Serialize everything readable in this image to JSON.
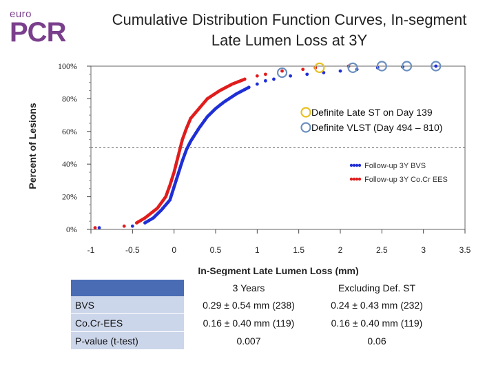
{
  "logo": {
    "small": "euro",
    "big": "PCR"
  },
  "title": "Cumulative Distribution Function Curves, In-segment Late Lumen Loss at 3Y",
  "chart_data": {
    "type": "scatter",
    "xlabel": "In-Segment Late Lumen Loss (mm)",
    "ylabel": "Percent of Lesions",
    "xlim": [
      -1,
      3.5
    ],
    "ylim": [
      0,
      100
    ],
    "x_ticks": [
      "-1",
      "-0.5",
      "0",
      "0.5",
      "1",
      "1.5",
      "2",
      "2.5",
      "3",
      "3.5"
    ],
    "y_ticks": [
      "0%",
      "20%",
      "40%",
      "60%",
      "80%",
      "100%"
    ],
    "reference_line_y": 50,
    "legend": {
      "placement": "right",
      "items": [
        {
          "label": "Follow-up 3Y BVS",
          "color": "#1f2fd6"
        },
        {
          "label": "Follow-up 3Y Co.Cr EES",
          "color": "#e01c1c"
        }
      ]
    },
    "series": [
      {
        "name": "Follow-up 3Y BVS",
        "color": "#1f2fd6",
        "points": [
          [
            -0.9,
            1
          ],
          [
            -0.5,
            2
          ],
          [
            -0.35,
            4
          ],
          [
            -0.25,
            7
          ],
          [
            -0.15,
            12
          ],
          [
            -0.05,
            18
          ],
          [
            0.0,
            26
          ],
          [
            0.05,
            34
          ],
          [
            0.1,
            42
          ],
          [
            0.15,
            49
          ],
          [
            0.2,
            54
          ],
          [
            0.3,
            62
          ],
          [
            0.4,
            69
          ],
          [
            0.5,
            74
          ],
          [
            0.6,
            78
          ],
          [
            0.75,
            83
          ],
          [
            0.9,
            87
          ],
          [
            1.0,
            89
          ],
          [
            1.1,
            91
          ],
          [
            1.2,
            92
          ],
          [
            1.4,
            94
          ],
          [
            1.6,
            95
          ],
          [
            1.8,
            96
          ],
          [
            2.0,
            97
          ],
          [
            2.2,
            98
          ],
          [
            2.45,
            99
          ],
          [
            2.75,
            99.5
          ],
          [
            3.15,
            100
          ]
        ]
      },
      {
        "name": "Follow-up 3Y Co.Cr EES",
        "color": "#e01c1c",
        "points": [
          [
            -0.95,
            1
          ],
          [
            -0.6,
            2
          ],
          [
            -0.45,
            4
          ],
          [
            -0.35,
            7
          ],
          [
            -0.2,
            13
          ],
          [
            -0.1,
            20
          ],
          [
            -0.05,
            27
          ],
          [
            0.0,
            35
          ],
          [
            0.05,
            45
          ],
          [
            0.1,
            55
          ],
          [
            0.15,
            62
          ],
          [
            0.2,
            68
          ],
          [
            0.3,
            74
          ],
          [
            0.4,
            80
          ],
          [
            0.55,
            85
          ],
          [
            0.7,
            89
          ],
          [
            0.85,
            92
          ],
          [
            1.0,
            94
          ],
          [
            1.1,
            95
          ],
          [
            1.3,
            97
          ],
          [
            1.55,
            98
          ],
          [
            1.7,
            99
          ],
          [
            2.1,
            100
          ]
        ]
      }
    ],
    "annotations": [
      {
        "label": "Definite Late ST on Day 139",
        "marker_color": "#e8c020",
        "points": [
          [
            1.75,
            99
          ]
        ]
      },
      {
        "label": "Definite VLST (Day 494 – 810)",
        "marker_color": "#6b8fbf",
        "points": [
          [
            1.3,
            96
          ],
          [
            2.15,
            99
          ],
          [
            2.5,
            100
          ],
          [
            2.8,
            100
          ],
          [
            3.15,
            100
          ]
        ]
      }
    ]
  },
  "table": {
    "headers": [
      "",
      "3 Years",
      "Excluding Def. ST"
    ],
    "rows": [
      {
        "label": "BVS",
        "col1": "0.29 ± 0.54 mm (238)",
        "col2": "0.24 ± 0.43 mm (232)"
      },
      {
        "label": "Co.Cr-EES",
        "col1": "0.16 ± 0.40 mm (119)",
        "col2": "0.16 ± 0.40 mm (119)"
      },
      {
        "label": "P-value (t-test)",
        "col1": "0.007",
        "col2": "0.06"
      }
    ]
  }
}
